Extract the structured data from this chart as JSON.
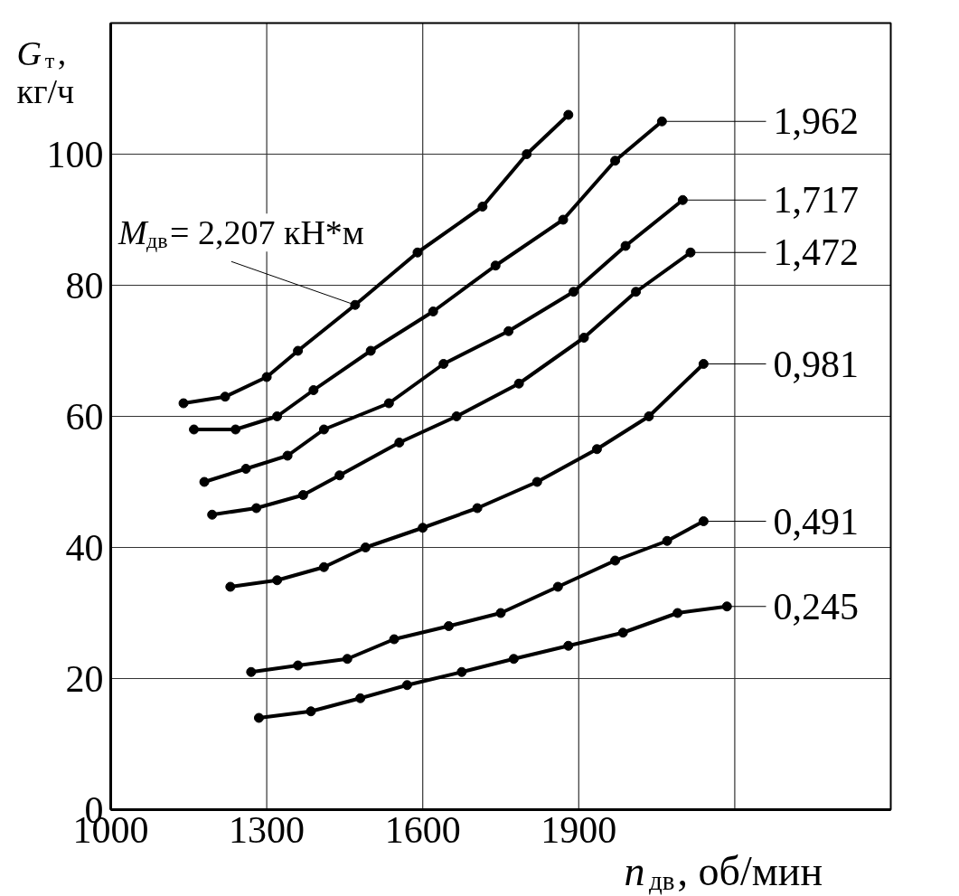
{
  "chart_data": {
    "type": "line",
    "xlabel": "n$_{дв}$, об/мин",
    "ylabel": "G$_{т}$, кг/ч",
    "xlim": [
      1000,
      2500
    ],
    "ylim": [
      0,
      120
    ],
    "xticks": [
      1000,
      1300,
      1600,
      1900,
      {
        "value": 2200,
        "label": null
      }
    ],
    "yticks": [
      0,
      20,
      40,
      60,
      80,
      100
    ],
    "grid": true,
    "legend": "right",
    "marker": "circle",
    "line_style": "solid",
    "series": [
      {
        "name": "M$_{дв}$= 2,207 кН*м",
        "color": "#000000",
        "x": [
          1140,
          1220,
          1300,
          1360,
          1470,
          1590,
          1715,
          1800,
          1880
        ],
        "values": [
          62,
          63,
          66,
          70,
          77,
          85,
          92,
          100,
          106
        ]
      },
      {
        "name": "1,962",
        "color": "#000000",
        "x": [
          1160,
          1240,
          1320,
          1390,
          1500,
          1620,
          1740,
          1870,
          1970,
          2060
        ],
        "values": [
          58,
          58,
          60,
          64,
          70,
          76,
          83,
          90,
          99,
          105
        ]
      },
      {
        "name": "1,717",
        "color": "#000000",
        "x": [
          1180,
          1260,
          1340,
          1410,
          1535,
          1640,
          1765,
          1890,
          1990,
          2100
        ],
        "values": [
          50,
          52,
          54,
          58,
          62,
          68,
          73,
          79,
          86,
          93
        ]
      },
      {
        "name": "1,472",
        "color": "#000000",
        "x": [
          1195,
          1280,
          1370,
          1440,
          1555,
          1665,
          1785,
          1910,
          2010,
          2115
        ],
        "values": [
          45,
          46,
          48,
          51,
          56,
          60,
          65,
          72,
          79,
          85
        ]
      },
      {
        "name": "0,981",
        "color": "#000000",
        "x": [
          1230,
          1320,
          1410,
          1490,
          1600,
          1705,
          1820,
          1935,
          2035,
          2140
        ],
        "values": [
          34,
          35,
          37,
          40,
          43,
          46,
          50,
          55,
          60,
          68
        ]
      },
      {
        "name": "0,491",
        "color": "#000000",
        "x": [
          1270,
          1360,
          1455,
          1545,
          1650,
          1750,
          1860,
          1970,
          2070,
          2140
        ],
        "values": [
          21,
          22,
          23,
          26,
          28,
          30,
          34,
          38,
          41,
          44
        ]
      },
      {
        "name": "0,245",
        "color": "#000000",
        "x": [
          1285,
          1385,
          1480,
          1570,
          1675,
          1775,
          1880,
          1985,
          2090,
          2185
        ],
        "values": [
          14,
          15,
          17,
          19,
          21,
          23,
          25,
          27,
          30,
          31
        ]
      }
    ]
  }
}
